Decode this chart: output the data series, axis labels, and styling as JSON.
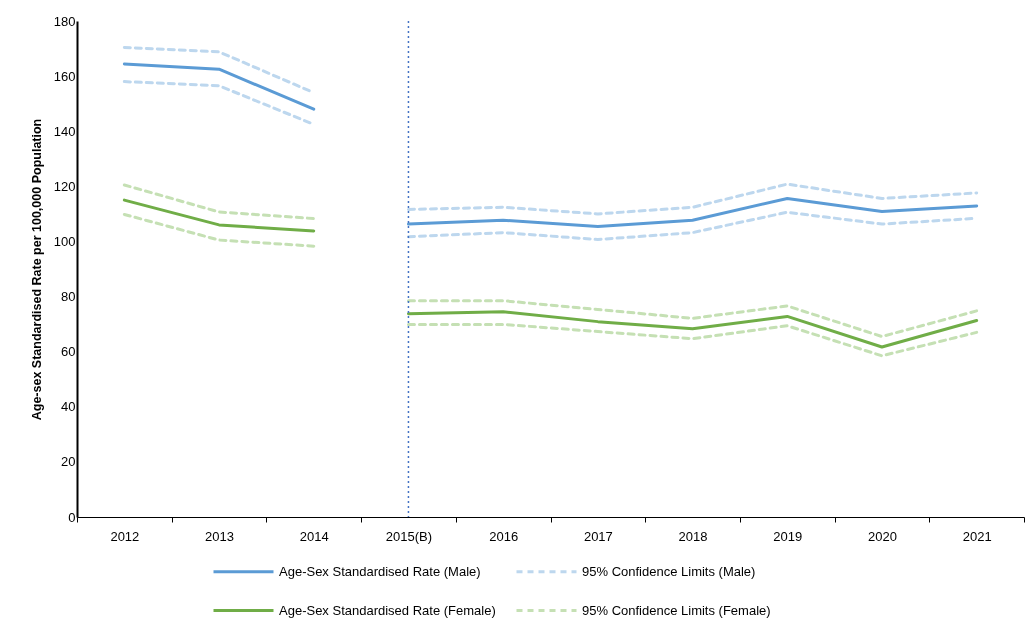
{
  "chart_data": {
    "type": "line",
    "ylabel": "Age-sex Standardised Rate per  100,000 Population",
    "categories": [
      "2012",
      "2013",
      "2014",
      "2015(B)",
      "2016",
      "2017",
      "2018",
      "2019",
      "2020",
      "2021"
    ],
    "ylim": [
      0,
      180
    ],
    "yticks": [
      0,
      20,
      40,
      60,
      80,
      100,
      120,
      140,
      160,
      180
    ],
    "grid": false,
    "legend": "bottom",
    "marker": "none",
    "ref_lines": [
      {
        "axis": "x",
        "value": "2015(B)",
        "color": "#4472c4",
        "line_style": "dotted"
      }
    ],
    "series": [
      {
        "name": "Age-Sex Standardised Rate (Male)",
        "color": "#5b9bd5",
        "line_style": "solid",
        "values": [
          164.4,
          162.5,
          148,
          null,
          null,
          null,
          null,
          null,
          null,
          null
        ]
      },
      {
        "name": "95% Confidence Limits (Male)",
        "color": "#bdd7ee",
        "line_style": "dashed",
        "values": [
          170.4,
          168.8,
          154,
          null,
          null,
          null,
          null,
          null,
          null,
          null
        ]
      },
      {
        "name": "Age-Sex Standardised Rate (Female)",
        "color": "#70ad47",
        "line_style": "solid",
        "values": [
          115,
          106,
          103.8,
          null,
          null,
          null,
          null,
          null,
          null,
          null
        ]
      },
      {
        "name": "95% Confidence Limits (Female)",
        "color": "#c5e0b4",
        "line_style": "dashed",
        "values": [
          120.5,
          110.7,
          108.3,
          null,
          null,
          null,
          null,
          null,
          null,
          null
        ]
      },
      {
        "color": "#bdd7ee",
        "line_style": "dashed",
        "values": [
          158,
          156.5,
          142.5,
          null,
          null,
          null,
          null,
          null,
          null,
          null
        ]
      },
      {
        "color": "#c5e0b4",
        "line_style": "dashed",
        "values": [
          109.8,
          100.5,
          98.3,
          null,
          null,
          null,
          null,
          null,
          null,
          null
        ]
      },
      {
        "color": "#5b9bd5",
        "line_style": "solid",
        "values": [
          null,
          null,
          null,
          106.3,
          107.7,
          105.4,
          107.7,
          115.6,
          110.9,
          112.9
        ]
      },
      {
        "color": "#bdd7ee",
        "line_style": "dashed",
        "values": [
          null,
          null,
          null,
          111.6,
          112.4,
          110,
          112.4,
          120.8,
          115.6,
          117.6
        ]
      },
      {
        "color": "#bdd7ee",
        "line_style": "dashed",
        "values": [
          null,
          null,
          null,
          101.7,
          103.2,
          100.7,
          103.2,
          110.6,
          106.3,
          108.4
        ]
      },
      {
        "color": "#70ad47",
        "line_style": "solid",
        "values": [
          null,
          null,
          null,
          73.8,
          74.5,
          70.9,
          68.3,
          72.8,
          61.7,
          71.3
        ]
      },
      {
        "color": "#c5e0b4",
        "line_style": "dashed",
        "values": [
          null,
          null,
          null,
          78.5,
          78.5,
          75.3,
          72.1,
          76.6,
          65.5,
          74.8
        ]
      },
      {
        "color": "#c5e0b4",
        "line_style": "dashed",
        "values": [
          null,
          null,
          null,
          69.9,
          69.9,
          67.3,
          64.7,
          69.4,
          58.5,
          67
        ]
      }
    ]
  }
}
